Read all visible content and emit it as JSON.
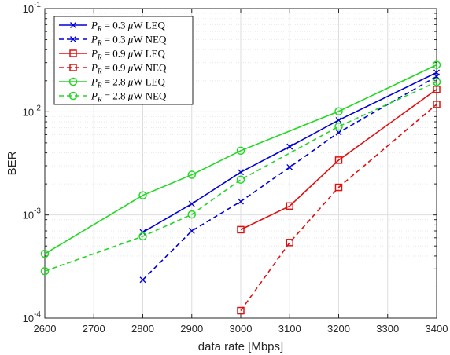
{
  "chart_data": {
    "type": "line",
    "title": "",
    "xlabel": "data rate [Mbps]",
    "ylabel": "BER",
    "xlim": [
      2600,
      3400
    ],
    "ylim": [
      0.0001,
      0.1
    ],
    "yscale": "log",
    "grid": true,
    "minor_grid": true,
    "legend_position": "top-left",
    "x_ticks": [
      2600,
      2700,
      2800,
      2900,
      3000,
      3100,
      3200,
      3300,
      3400
    ],
    "y_ticks": [
      {
        "value": 0.0001,
        "base": "10",
        "exp": "-4"
      },
      {
        "value": 0.001,
        "base": "10",
        "exp": "-3"
      },
      {
        "value": 0.01,
        "base": "10",
        "exp": "-2"
      },
      {
        "value": 0.1,
        "base": "10",
        "exp": "-1"
      }
    ],
    "series": [
      {
        "name": "P_R = 0.3 μW LEQ",
        "legend": {
          "sym": "P",
          "sub": "R",
          "value": " = 0.3 ",
          "unit_sym": "μ",
          "unit": "W LEQ"
        },
        "color": "#0000d8",
        "dash": "solid",
        "marker": "x",
        "x": [
          2800,
          2900,
          3000,
          3100,
          3200,
          3400
        ],
        "y": [
          0.00068,
          0.00128,
          0.0026,
          0.0046,
          0.0083,
          0.024
        ]
      },
      {
        "name": "P_R = 0.3 μW NEQ",
        "legend": {
          "sym": "P",
          "sub": "R",
          "value": " = 0.3 ",
          "unit_sym": "μ",
          "unit": "W NEQ"
        },
        "color": "#0000d8",
        "dash": "dashed",
        "marker": "x",
        "x": [
          2800,
          2900,
          3000,
          3100,
          3200,
          3400
        ],
        "y": [
          0.000235,
          0.0007,
          0.00135,
          0.0029,
          0.0063,
          0.022
        ]
      },
      {
        "name": "P_R = 0.9 μW LEQ",
        "legend": {
          "sym": "P",
          "sub": "R",
          "value": " = 0.9 ",
          "unit_sym": "μ",
          "unit": "W LEQ"
        },
        "color": "#e01010",
        "dash": "solid",
        "marker": "square",
        "x": [
          3000,
          3100,
          3200,
          3400
        ],
        "y": [
          0.00072,
          0.00122,
          0.0034,
          0.0165
        ]
      },
      {
        "name": "P_R = 0.9 μW NEQ",
        "legend": {
          "sym": "P",
          "sub": "R",
          "value": " = 0.9 ",
          "unit_sym": "μ",
          "unit": "W NEQ"
        },
        "color": "#e01010",
        "dash": "dashed",
        "marker": "square",
        "x": [
          3000,
          3100,
          3200,
          3400
        ],
        "y": [
          0.000118,
          0.00054,
          0.00185,
          0.0118
        ]
      },
      {
        "name": "P_R = 2.8 μW LEQ",
        "legend": {
          "sym": "P",
          "sub": "R",
          "value": " = 2.8 ",
          "unit_sym": "μ",
          "unit": "W LEQ"
        },
        "color": "#22d822",
        "dash": "solid",
        "marker": "circle",
        "x": [
          2600,
          2800,
          2900,
          3000,
          3200,
          3400
        ],
        "y": [
          0.00042,
          0.00155,
          0.00245,
          0.0042,
          0.0101,
          0.0285
        ]
      },
      {
        "name": "P_R = 2.8 μW NEQ",
        "legend": {
          "sym": "P",
          "sub": "R",
          "value": " = 2.8 ",
          "unit_sym": "μ",
          "unit": "W NEQ"
        },
        "color": "#22d822",
        "dash": "dashed",
        "marker": "circle",
        "x": [
          2600,
          2800,
          2900,
          3000,
          3200,
          3400
        ],
        "y": [
          0.000285,
          0.00062,
          0.00101,
          0.0022,
          0.0072,
          0.0195
        ]
      }
    ]
  }
}
